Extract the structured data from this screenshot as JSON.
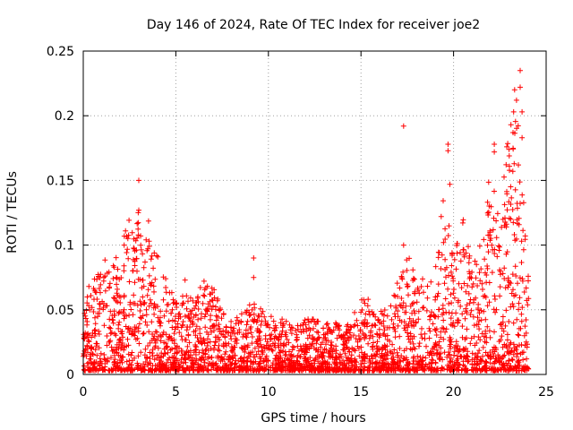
{
  "chart_data": {
    "type": "scatter",
    "title": "Day 146 of 2024, Rate Of TEC Index for receiver joe2",
    "xlabel": "GPS time / hours",
    "ylabel": "ROTI / TECUs",
    "xlim": [
      0,
      25
    ],
    "ylim": [
      0,
      0.25
    ],
    "grid": true,
    "marker": "+",
    "color": "#ff0000",
    "x_ticks": [
      {
        "value": 0,
        "label": "0"
      },
      {
        "value": 5,
        "label": "5"
      },
      {
        "value": 10,
        "label": "10"
      },
      {
        "value": 15,
        "label": "15"
      },
      {
        "value": 20,
        "label": "20"
      },
      {
        "value": 25,
        "label": "25"
      }
    ],
    "y_ticks": [
      {
        "value": 0,
        "label": "0"
      },
      {
        "value": 0.05,
        "label": "0.05"
      },
      {
        "value": 0.1,
        "label": "0.1"
      },
      {
        "value": 0.15,
        "label": "0.15"
      },
      {
        "value": 0.2,
        "label": "0.2"
      },
      {
        "value": 0.25,
        "label": "0.25"
      }
    ],
    "envelope": {
      "description": "approximate upper envelope of ROTI vs time (hours)",
      "x": [
        0,
        0.5,
        1,
        1.5,
        2,
        2.5,
        3,
        3.5,
        4,
        4.5,
        5,
        5.5,
        6,
        6.5,
        7,
        7.5,
        8,
        8.5,
        9,
        9.5,
        10,
        10.5,
        11,
        11.5,
        12,
        12.5,
        13,
        13.5,
        14,
        14.5,
        15,
        15.5,
        16,
        16.5,
        17,
        17.5,
        18,
        18.5,
        19,
        19.5,
        20,
        20.5,
        21,
        21.5,
        22,
        22.5,
        23,
        23.5,
        24
      ],
      "y": [
        0.06,
        0.085,
        0.09,
        0.085,
        0.1,
        0.125,
        0.13,
        0.12,
        0.09,
        0.07,
        0.055,
        0.06,
        0.055,
        0.07,
        0.065,
        0.05,
        0.045,
        0.045,
        0.055,
        0.05,
        0.045,
        0.04,
        0.04,
        0.038,
        0.04,
        0.04,
        0.035,
        0.04,
        0.035,
        0.04,
        0.06,
        0.055,
        0.045,
        0.05,
        0.07,
        0.09,
        0.075,
        0.07,
        0.08,
        0.14,
        0.09,
        0.12,
        0.08,
        0.1,
        0.16,
        0.13,
        0.19,
        0.22,
        0.08
      ]
    },
    "highlights": [
      {
        "x": 3.0,
        "y": 0.15
      },
      {
        "x": 5.5,
        "y": 0.073
      },
      {
        "x": 9.2,
        "y": 0.09
      },
      {
        "x": 9.2,
        "y": 0.075
      },
      {
        "x": 17.3,
        "y": 0.192
      },
      {
        "x": 17.3,
        "y": 0.1
      },
      {
        "x": 19.7,
        "y": 0.178
      },
      {
        "x": 19.7,
        "y": 0.173
      },
      {
        "x": 19.8,
        "y": 0.147
      },
      {
        "x": 22.2,
        "y": 0.178
      },
      {
        "x": 22.2,
        "y": 0.172
      },
      {
        "x": 23.1,
        "y": 0.193
      },
      {
        "x": 23.3,
        "y": 0.22
      },
      {
        "x": 23.4,
        "y": 0.212
      },
      {
        "x": 23.6,
        "y": 0.235
      },
      {
        "x": 23.6,
        "y": 0.222
      },
      {
        "x": 23.7,
        "y": 0.203
      },
      {
        "x": 23.7,
        "y": 0.183
      },
      {
        "x": 23.5,
        "y": 0.162
      },
      {
        "x": 23.2,
        "y": 0.157
      }
    ],
    "n_points": 3000
  }
}
